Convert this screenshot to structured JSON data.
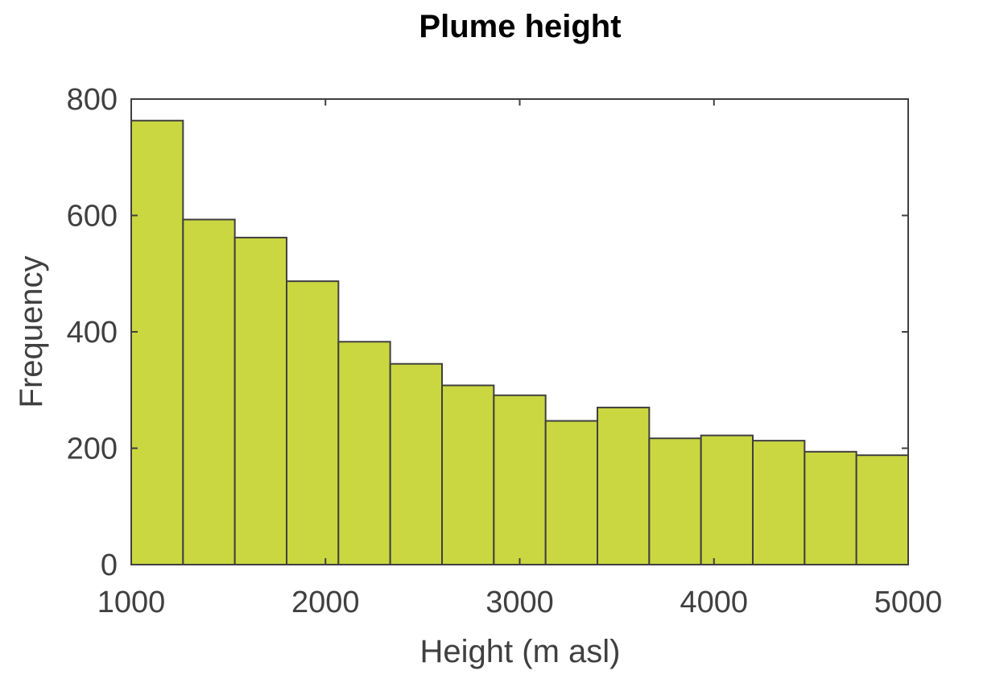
{
  "chart_data": {
    "type": "bar",
    "title": "Plume height",
    "xlabel": "Height (m asl)",
    "ylabel": "Frequency",
    "xlim": [
      1000,
      5000
    ],
    "ylim": [
      0,
      800
    ],
    "xticks": [
      "1000",
      "2000",
      "3000",
      "4000",
      "5000"
    ],
    "yticks": [
      "0",
      "200",
      "400",
      "600",
      "800"
    ],
    "bin_edges": [
      1000,
      1266.7,
      1533.3,
      1800,
      2066.7,
      2333.3,
      2600,
      2866.7,
      3133.3,
      3400,
      3666.7,
      3933.3,
      4200,
      4466.7,
      4733.3,
      5000
    ],
    "values": [
      763,
      593,
      562,
      487,
      383,
      345,
      308,
      291,
      247,
      270,
      217,
      222,
      213,
      194,
      188
    ],
    "bar_color": "#cad740",
    "edge_color": "#404040",
    "grid": false,
    "legend": false
  }
}
